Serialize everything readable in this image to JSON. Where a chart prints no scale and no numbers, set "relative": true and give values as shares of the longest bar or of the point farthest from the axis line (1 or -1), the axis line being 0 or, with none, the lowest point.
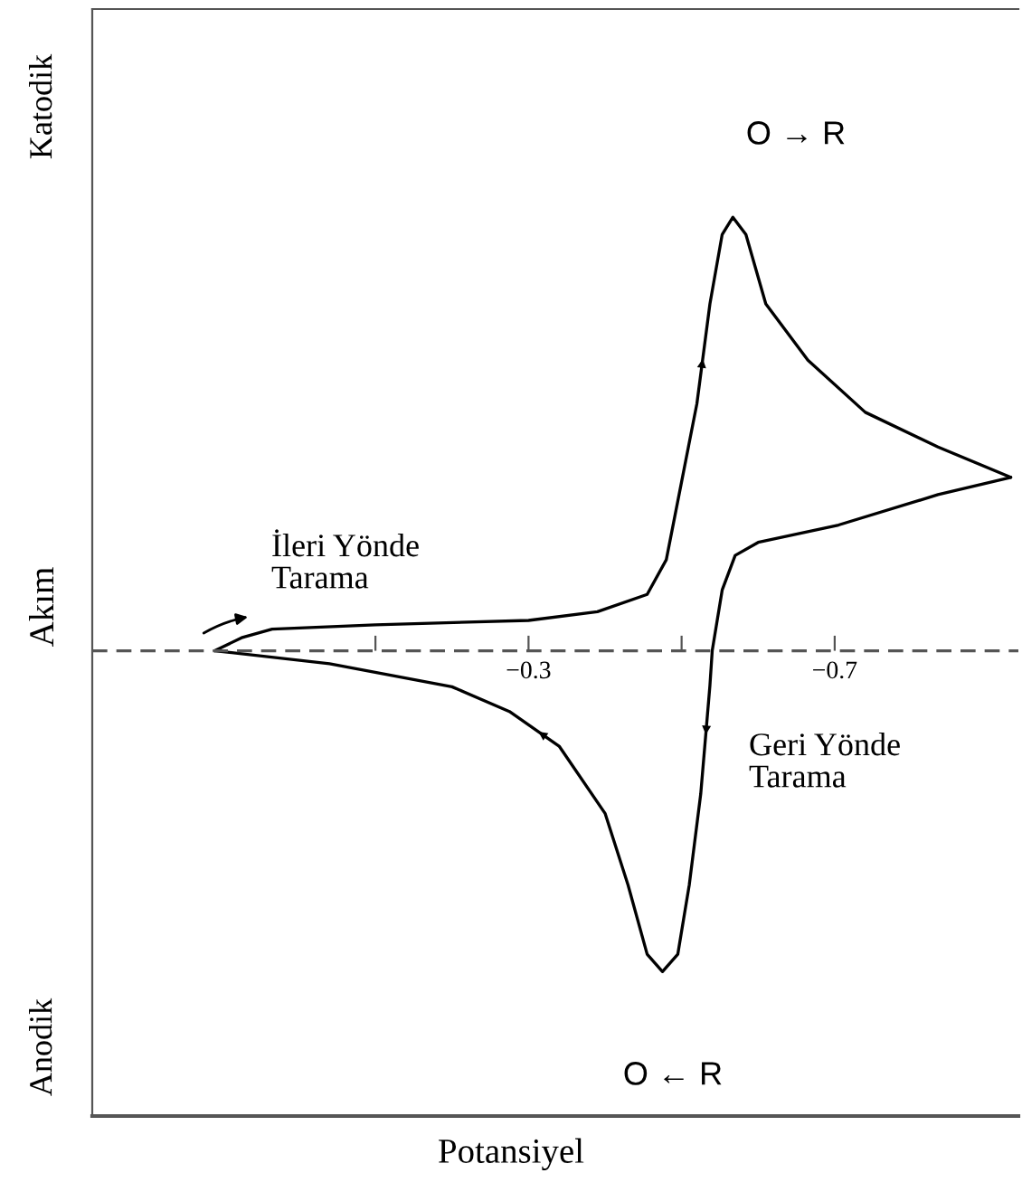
{
  "chart_data": {
    "type": "line",
    "xlabel": "Potansiyel",
    "ylabel": "Akım",
    "relative": true,
    "xlim": [
      0.27,
      -0.94
    ],
    "xticks": [
      {
        "value": -0.1,
        "label": null
      },
      {
        "value": -0.3,
        "label": "−0.3"
      },
      {
        "value": -0.5,
        "label": null
      },
      {
        "value": -0.7,
        "label": "−0.7"
      }
    ],
    "series": [
      {
        "color": "#000000",
        "x": [
          0.11,
          0.075,
          0.035,
          -0.1,
          -0.3,
          -0.39,
          -0.455,
          -0.48,
          -0.5,
          -0.52,
          -0.537,
          -0.553,
          -0.567,
          -0.584,
          -0.61,
          -0.665,
          -0.74,
          -0.835,
          -0.93
        ],
        "values": [
          0.0,
          0.03,
          0.05,
          0.06,
          0.07,
          0.09,
          0.13,
          0.21,
          0.39,
          0.57,
          0.8,
          0.96,
          1.0,
          0.96,
          0.8,
          0.67,
          0.55,
          0.47,
          0.4
        ]
      },
      {
        "color": "#000000",
        "x": [
          -0.93,
          -0.835,
          -0.705,
          -0.6,
          -0.57,
          -0.553,
          -0.54,
          -0.537,
          -0.525,
          -0.51,
          -0.495,
          -0.475,
          -0.455,
          -0.43,
          -0.4,
          -0.34,
          -0.275,
          -0.2,
          -0.04,
          0.11
        ],
        "values": [
          0.4,
          0.36,
          0.29,
          0.25,
          0.22,
          0.14,
          0.0,
          -0.08,
          -0.33,
          -0.54,
          -0.7,
          -0.74,
          -0.7,
          -0.54,
          -0.375,
          -0.22,
          -0.14,
          -0.083,
          -0.03,
          0.0
        ]
      }
    ],
    "ref_lines": [
      {
        "axis": "y",
        "value": 0,
        "color": "#555555",
        "line_style": "dashed"
      }
    ],
    "annotations": [
      "Katodik",
      "Anodik",
      "O → R",
      "O ← R",
      "İleri Yönde\nTarama",
      "Geri Yönde\nTarama"
    ]
  }
}
